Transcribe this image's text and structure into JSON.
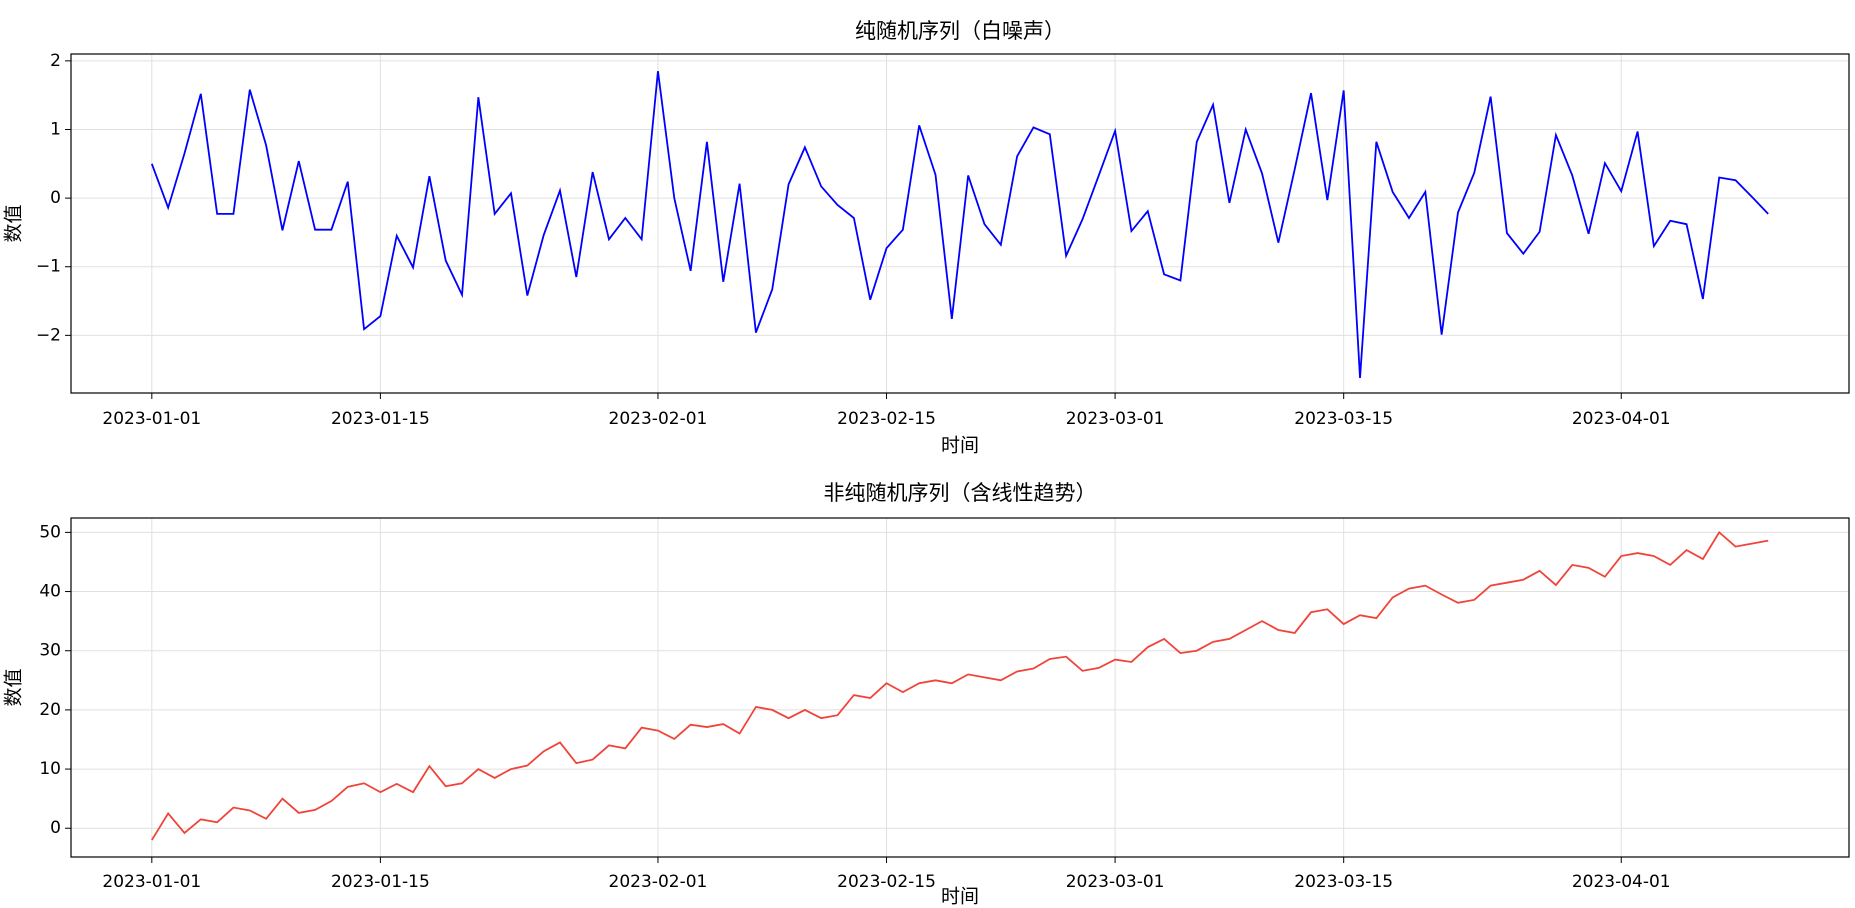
{
  "chart_data": [
    {
      "type": "line",
      "title": "纯随机序列（白噪声）",
      "xlabel": "时间",
      "ylabel": "数值",
      "x": [
        "2023-01-01",
        "2023-01-02",
        "2023-01-03",
        "2023-01-04",
        "2023-01-05",
        "2023-01-06",
        "2023-01-07",
        "2023-01-08",
        "2023-01-09",
        "2023-01-10",
        "2023-01-11",
        "2023-01-12",
        "2023-01-13",
        "2023-01-14",
        "2023-01-15",
        "2023-01-16",
        "2023-01-17",
        "2023-01-18",
        "2023-01-19",
        "2023-01-20",
        "2023-01-21",
        "2023-01-22",
        "2023-01-23",
        "2023-01-24",
        "2023-01-25",
        "2023-01-26",
        "2023-01-27",
        "2023-01-28",
        "2023-01-29",
        "2023-01-30",
        "2023-01-31",
        "2023-02-01",
        "2023-02-02",
        "2023-02-03",
        "2023-02-04",
        "2023-02-05",
        "2023-02-06",
        "2023-02-07",
        "2023-02-08",
        "2023-02-09",
        "2023-02-10",
        "2023-02-11",
        "2023-02-12",
        "2023-02-13",
        "2023-02-14",
        "2023-02-15",
        "2023-02-16",
        "2023-02-17",
        "2023-02-18",
        "2023-02-19",
        "2023-02-20",
        "2023-02-21",
        "2023-02-22",
        "2023-02-23",
        "2023-02-24",
        "2023-02-25",
        "2023-02-26",
        "2023-02-27",
        "2023-02-28",
        "2023-03-01",
        "2023-03-02",
        "2023-03-03",
        "2023-03-04",
        "2023-03-05",
        "2023-03-06",
        "2023-03-07",
        "2023-03-08",
        "2023-03-09",
        "2023-03-10",
        "2023-03-11",
        "2023-03-12",
        "2023-03-13",
        "2023-03-14",
        "2023-03-15",
        "2023-03-16",
        "2023-03-17",
        "2023-03-18",
        "2023-03-19",
        "2023-03-20",
        "2023-03-21",
        "2023-03-22",
        "2023-03-23",
        "2023-03-24",
        "2023-03-25",
        "2023-03-26",
        "2023-03-27",
        "2023-03-28",
        "2023-03-29",
        "2023-03-30",
        "2023-03-31",
        "2023-04-01",
        "2023-04-02",
        "2023-04-03",
        "2023-04-04",
        "2023-04-05",
        "2023-04-06",
        "2023-04-07",
        "2023-04-08",
        "2023-04-09",
        "2023-04-10"
      ],
      "values": [
        0.5,
        -0.14,
        0.65,
        1.52,
        -0.23,
        -0.23,
        1.58,
        0.77,
        -0.47,
        0.54,
        -0.46,
        -0.46,
        0.24,
        -1.91,
        -1.72,
        -0.55,
        -1.01,
        0.32,
        -0.91,
        -1.41,
        1.47,
        -0.23,
        0.07,
        -1.42,
        -0.54,
        0.11,
        -1.15,
        0.38,
        -0.6,
        -0.29,
        -0.6,
        1.85,
        0.0,
        -1.06,
        0.82,
        -1.22,
        0.21,
        -1.96,
        -1.33,
        0.2,
        0.74,
        0.17,
        -0.1,
        -0.29,
        -1.48,
        -0.73,
        -0.46,
        1.06,
        0.34,
        -1.76,
        0.33,
        -0.38,
        -0.68,
        0.61,
        1.03,
        0.93,
        -0.84,
        -0.31,
        0.33,
        0.98,
        -0.48,
        -0.19,
        -1.11,
        -1.2,
        0.82,
        1.36,
        -0.07,
        1.0,
        0.36,
        -0.65,
        0.42,
        1.53,
        -0.03,
        1.57,
        -2.62,
        0.82,
        0.09,
        -0.29,
        0.09,
        -1.99,
        -0.21,
        0.37,
        1.48,
        -0.51,
        -0.81,
        -0.49,
        0.92,
        0.33,
        -0.52,
        0.51,
        0.1,
        0.97,
        -0.7,
        -0.33,
        -0.38,
        -1.47,
        0.3,
        0.26,
        0.02,
        -0.23
      ],
      "color": "#0000ff",
      "xlim": [
        "2022-12-27T01:12Z",
        "2023-04-14T22:48Z"
      ],
      "xticks": [
        "2023-01-01",
        "2023-01-15",
        "2023-02-01",
        "2023-02-15",
        "2023-03-01",
        "2023-03-15",
        "2023-04-01"
      ],
      "ylim": [
        -2.84,
        2.1
      ],
      "yticks": [
        {
          "value": -2,
          "label": "−2"
        },
        {
          "value": -1,
          "label": "−1"
        },
        0,
        1,
        2
      ],
      "grid": true
    },
    {
      "type": "line",
      "title": "非纯随机序列（含线性趋势）",
      "xlabel": "时间",
      "ylabel": "数值",
      "x": [
        "2023-01-01",
        "2023-01-02",
        "2023-01-03",
        "2023-01-04",
        "2023-01-05",
        "2023-01-06",
        "2023-01-07",
        "2023-01-08",
        "2023-01-09",
        "2023-01-10",
        "2023-01-11",
        "2023-01-12",
        "2023-01-13",
        "2023-01-14",
        "2023-01-15",
        "2023-01-16",
        "2023-01-17",
        "2023-01-18",
        "2023-01-19",
        "2023-01-20",
        "2023-01-21",
        "2023-01-22",
        "2023-01-23",
        "2023-01-24",
        "2023-01-25",
        "2023-01-26",
        "2023-01-27",
        "2023-01-28",
        "2023-01-29",
        "2023-01-30",
        "2023-01-31",
        "2023-02-01",
        "2023-02-02",
        "2023-02-03",
        "2023-02-04",
        "2023-02-05",
        "2023-02-06",
        "2023-02-07",
        "2023-02-08",
        "2023-02-09",
        "2023-02-10",
        "2023-02-11",
        "2023-02-12",
        "2023-02-13",
        "2023-02-14",
        "2023-02-15",
        "2023-02-16",
        "2023-02-17",
        "2023-02-18",
        "2023-02-19",
        "2023-02-20",
        "2023-02-21",
        "2023-02-22",
        "2023-02-23",
        "2023-02-24",
        "2023-02-25",
        "2023-02-26",
        "2023-02-27",
        "2023-02-28",
        "2023-03-01",
        "2023-03-02",
        "2023-03-03",
        "2023-03-04",
        "2023-03-05",
        "2023-03-06",
        "2023-03-07",
        "2023-03-08",
        "2023-03-09",
        "2023-03-10",
        "2023-03-11",
        "2023-03-12",
        "2023-03-13",
        "2023-03-14",
        "2023-03-15",
        "2023-03-16",
        "2023-03-17",
        "2023-03-18",
        "2023-03-19",
        "2023-03-20",
        "2023-03-21",
        "2023-03-22",
        "2023-03-23",
        "2023-03-24",
        "2023-03-25",
        "2023-03-26",
        "2023-03-27",
        "2023-03-28",
        "2023-03-29",
        "2023-03-30",
        "2023-03-31",
        "2023-04-01",
        "2023-04-02",
        "2023-04-03",
        "2023-04-04",
        "2023-04-05",
        "2023-04-06",
        "2023-04-07",
        "2023-04-08",
        "2023-04-09",
        "2023-04-10"
      ],
      "values": [
        -2.0,
        2.5,
        -0.8,
        1.5,
        1.0,
        3.5,
        3.0,
        1.6,
        5.0,
        2.6,
        3.1,
        4.6,
        7.0,
        7.6,
        6.1,
        7.5,
        6.1,
        10.5,
        7.1,
        7.6,
        10.0,
        8.5,
        10.0,
        10.6,
        13.0,
        14.5,
        11.0,
        11.6,
        14.0,
        13.5,
        17.0,
        16.5,
        15.1,
        17.5,
        17.1,
        17.6,
        16.0,
        20.5,
        20.0,
        18.6,
        20.0,
        18.6,
        19.1,
        22.5,
        22.0,
        24.5,
        23.0,
        24.5,
        25.0,
        24.5,
        26.0,
        25.5,
        25.0,
        26.5,
        27.0,
        28.6,
        29.0,
        26.6,
        27.1,
        28.5,
        28.1,
        30.6,
        32.0,
        29.6,
        30.0,
        31.5,
        32.0,
        33.5,
        35.0,
        33.5,
        33.0,
        36.5,
        37.0,
        34.5,
        36.0,
        35.5,
        39.0,
        40.5,
        41.0,
        39.5,
        38.1,
        38.6,
        41.0,
        41.5,
        42.0,
        43.5,
        41.1,
        44.5,
        44.0,
        42.5,
        46.0,
        46.5,
        46.0,
        44.5,
        47.0,
        45.5,
        50.0,
        47.6,
        48.1,
        48.6
      ],
      "color": "#f0443a",
      "xlim": [
        "2022-12-27T01:12Z",
        "2023-04-14T22:48Z"
      ],
      "xticks": [
        "2023-01-01",
        "2023-01-15",
        "2023-02-01",
        "2023-02-15",
        "2023-03-01",
        "2023-03-15",
        "2023-04-01"
      ],
      "ylim": [
        -4.86,
        52.43
      ],
      "yticks": [
        0,
        10,
        20,
        30,
        40,
        50
      ],
      "grid": true
    }
  ]
}
